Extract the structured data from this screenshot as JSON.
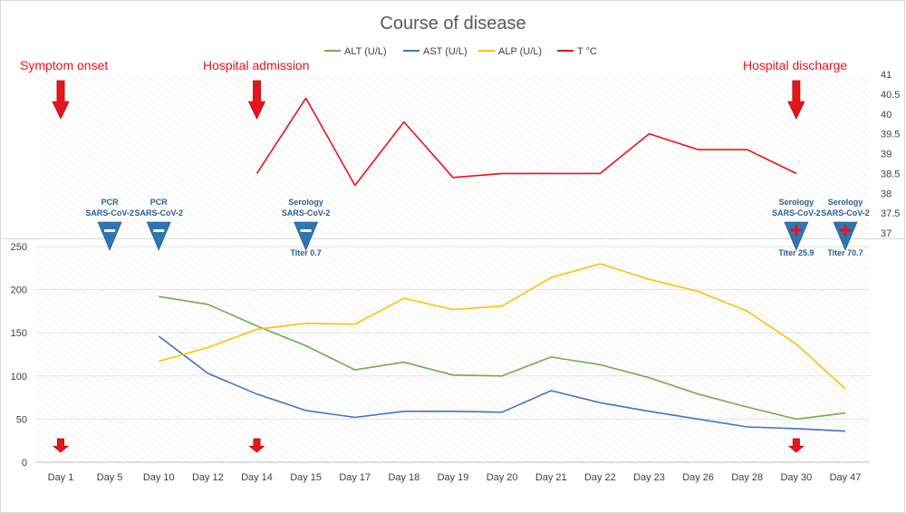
{
  "chart_data": [
    {
      "type": "line",
      "title": "Course of disease",
      "legend_position": "top",
      "x": [
        "Day 1",
        "Day 5",
        "Day 10",
        "Day 12",
        "Day 14",
        "Day 15",
        "Day 17",
        "Day 18",
        "Day 19",
        "Day 20",
        "Day 21",
        "Day 22",
        "Day 23",
        "Day 26",
        "Day 28",
        "Day 30",
        "Day 47"
      ],
      "y_right_ticks": [
        "41",
        "40.5",
        "40",
        "39.5",
        "39",
        "38.5",
        "38",
        "37.5",
        "37"
      ],
      "ylim": [
        37,
        41
      ],
      "series": [
        {
          "name": "T °C",
          "color": "#e8141b",
          "values": [
            null,
            null,
            null,
            null,
            38.5,
            40.4,
            38.2,
            39.8,
            38.4,
            38.5,
            38.5,
            38.5,
            39.5,
            39.1,
            39.1,
            38.5,
            null
          ]
        }
      ],
      "events": [
        {
          "label": "Symptom onset",
          "day": "Day 1"
        },
        {
          "label": "Hospital admission",
          "day": "Day 14"
        },
        {
          "label": "Hospital discharge",
          "day": "Day 30"
        }
      ],
      "tests": [
        {
          "day": "Day 5",
          "lines": [
            "PCR",
            "SARS-CoV-2"
          ],
          "result": "negative",
          "titer": ""
        },
        {
          "day": "Day 10",
          "lines": [
            "PCR",
            "SARS-CoV-2"
          ],
          "result": "negative",
          "titer": ""
        },
        {
          "day": "Day 15",
          "lines": [
            "Serology",
            "SARS-CoV-2"
          ],
          "result": "negative",
          "titer": "Titer 0.7"
        },
        {
          "day": "Day 30",
          "lines": [
            "Serology",
            "SARS-CoV-2"
          ],
          "result": "positive",
          "titer": "Titer 25.9"
        },
        {
          "day": "Day 47",
          "lines": [
            "Serology",
            "SARS-CoV-2"
          ],
          "result": "positive",
          "titer": "Titer 70.7"
        }
      ]
    },
    {
      "type": "line",
      "x": [
        "Day 1",
        "Day 5",
        "Day 10",
        "Day 12",
        "Day 14",
        "Day 15",
        "Day 17",
        "Day 18",
        "Day 19",
        "Day 20",
        "Day 21",
        "Day 22",
        "Day 23",
        "Day 26",
        "Day 28",
        "Day 30",
        "Day 47"
      ],
      "y_left_ticks": [
        "250",
        "200",
        "150",
        "100",
        "50",
        "0"
      ],
      "ylim": [
        0,
        250
      ],
      "series": [
        {
          "name": "ALT (U/L)",
          "color": "#70ad47",
          "values": [
            null,
            null,
            192,
            183,
            158,
            135,
            107,
            116,
            101,
            100,
            122,
            113,
            98,
            79,
            64,
            50,
            57
          ]
        },
        {
          "name": "AST (U/L)",
          "color": "#4472c4",
          "values": [
            null,
            null,
            146,
            103,
            79,
            60,
            52,
            59,
            59,
            58,
            83,
            69,
            59,
            50,
            41,
            39,
            36
          ]
        },
        {
          "name": "ALP (U/L)",
          "color": "#ffc000",
          "values": [
            null,
            null,
            117,
            133,
            154,
            161,
            160,
            190,
            177,
            181,
            214,
            230,
            212,
            198,
            175,
            137,
            85
          ]
        }
      ],
      "event_markers": [
        "Day 1",
        "Day 14",
        "Day 30"
      ]
    }
  ],
  "legend": [
    {
      "name": "ALT (U/L)",
      "color": "#70ad47"
    },
    {
      "name": "AST (U/L)",
      "color": "#4472c4"
    },
    {
      "name": "ALP (U/L)",
      "color": "#ffc000"
    },
    {
      "name": "T °C",
      "color": "#e8141b"
    }
  ]
}
